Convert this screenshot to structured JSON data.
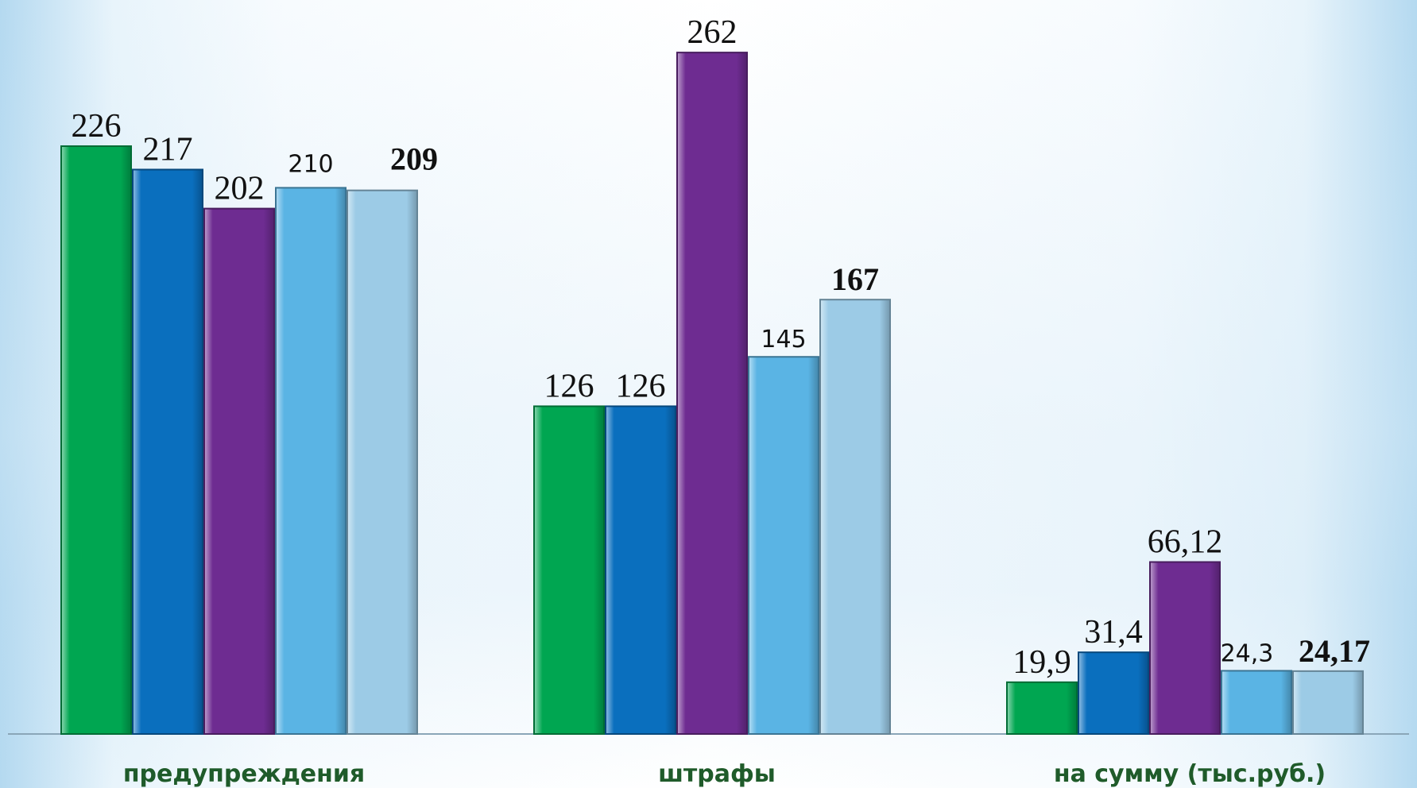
{
  "chart_data": {
    "type": "bar",
    "categories": [
      "предупреждения",
      "штрафы",
      "на сумму (тыс.руб.)"
    ],
    "series": [
      {
        "color": "#00a651",
        "values": [
          226,
          126,
          19.9
        ],
        "labels": [
          "226",
          "126",
          "19,9"
        ]
      },
      {
        "color": "#0a6fbe",
        "values": [
          217,
          126,
          31.4
        ],
        "labels": [
          "217",
          "126",
          "31,4"
        ]
      },
      {
        "color": "#6e2c91",
        "values": [
          202,
          262,
          66.12
        ],
        "labels": [
          "202",
          "262",
          "66,12"
        ]
      },
      {
        "color": "#5ab4e4",
        "values": [
          210,
          145,
          24.3
        ],
        "labels": [
          "210",
          "145",
          "24,3"
        ]
      },
      {
        "color": "#9ccbe6",
        "values": [
          209,
          167,
          24.17
        ],
        "labels": [
          "209",
          "167",
          "24,17"
        ]
      }
    ],
    "ylim": [
      0,
      290
    ],
    "grid": false,
    "legend": "none"
  }
}
